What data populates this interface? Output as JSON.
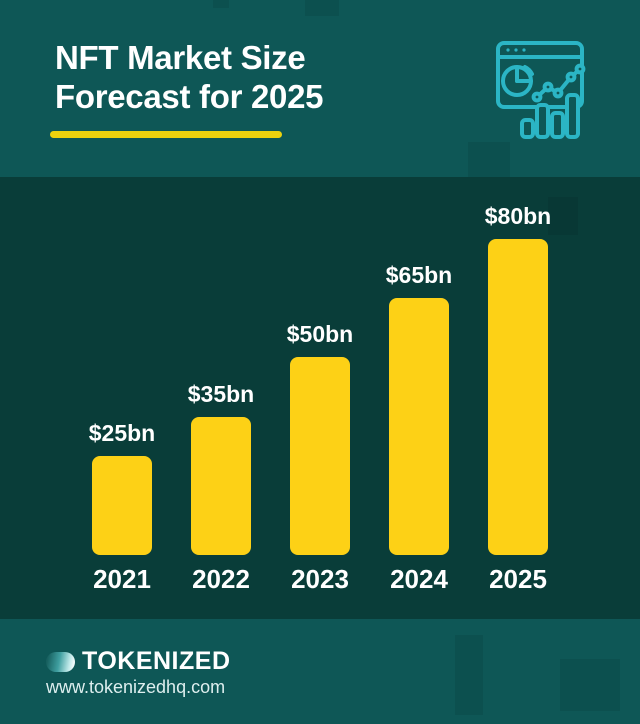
{
  "header": {
    "title_line1": "NFT Market Size",
    "title_line2": "Forecast for 2025",
    "icon": "analytics-dashboard-icon"
  },
  "chart_data": {
    "type": "bar",
    "title": "NFT Market Size Forecast for 2025",
    "categories": [
      "2021",
      "2022",
      "2023",
      "2024",
      "2025"
    ],
    "values": [
      25,
      35,
      50,
      65,
      80
    ],
    "labels": [
      "$25bn",
      "$35bn",
      "$50bn",
      "$65bn",
      "$80bn"
    ],
    "xlabel": "",
    "ylabel": "",
    "ylim": [
      0,
      80
    ],
    "grid": false,
    "legend": "none",
    "bar_color": "#FDD116",
    "value_label_color": "#FFFFFF"
  },
  "footer": {
    "brand": "TOKENIZED",
    "url": "www.tokenizedhq.com",
    "logo_icon": "tokenized-coin-logo"
  },
  "colors": {
    "header_bg": "#0E5756",
    "chart_bg": "#093D39",
    "bar_yellow": "#FDD116",
    "underline_yellow": "#EDD20D",
    "icon_cyan": "#2BB5C5",
    "text_white": "#FFFFFF"
  }
}
